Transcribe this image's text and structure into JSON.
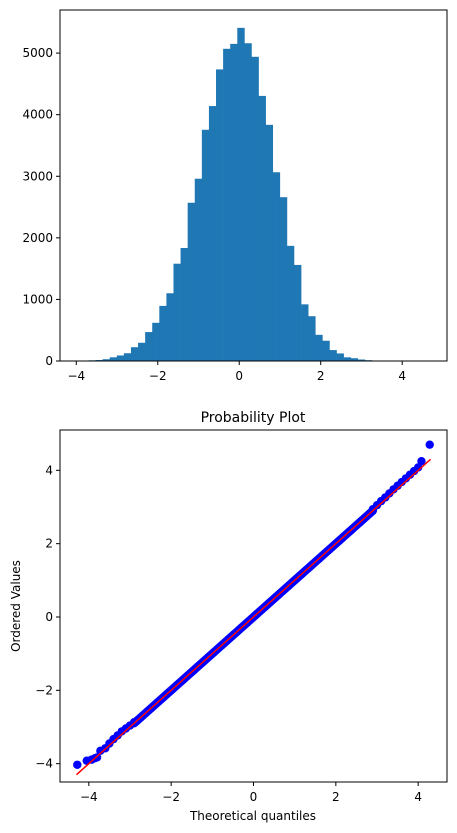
{
  "chart_data": [
    {
      "type": "bar",
      "subtype": "histogram",
      "title": "",
      "xlabel": "",
      "ylabel": "",
      "xlim": [
        -4.4,
        5.1
      ],
      "ylim": [
        0,
        5700
      ],
      "xticks": [
        -4,
        -2,
        0,
        2,
        4
      ],
      "xtick_labels": [
        "−4",
        "−2",
        "0",
        "2",
        "4"
      ],
      "yticks": [
        0,
        1000,
        2000,
        3000,
        4000,
        5000
      ],
      "ytick_labels": [
        "0",
        "1000",
        "2000",
        "3000",
        "4000",
        "5000"
      ],
      "grid": false,
      "color": "#1f77b4",
      "bin_start": -4.05,
      "bin_width": 0.174,
      "values": [
        3,
        4,
        11,
        16,
        29,
        60,
        90,
        126,
        224,
        296,
        470,
        620,
        895,
        1100,
        1580,
        1835,
        2570,
        2960,
        3755,
        4140,
        4735,
        5070,
        5150,
        5410,
        5160,
        4940,
        4305,
        3835,
        3065,
        2660,
        1870,
        1560,
        920,
        727,
        425,
        329,
        177,
        123,
        60,
        45,
        24,
        13,
        7,
        4,
        2,
        1,
        1,
        0,
        0,
        0,
        0,
        1
      ]
    },
    {
      "type": "scatter",
      "title": "Probability Plot",
      "xlabel": "Theoretical quantiles",
      "ylabel": "Ordered Values",
      "xlim": [
        -4.7,
        4.7
      ],
      "ylim": [
        -4.5,
        5.1
      ],
      "xticks": [
        -4,
        -2,
        0,
        2,
        4
      ],
      "xtick_labels": [
        "−4",
        "−2",
        "0",
        "2",
        "4"
      ],
      "yticks": [
        -4,
        -2,
        0,
        2,
        4
      ],
      "ytick_labels": [
        "−4",
        "−2",
        "0",
        "2",
        "4"
      ],
      "grid": false,
      "point_color": "#0000ff",
      "line_color": "#ff0000",
      "fit_line": {
        "slope": 1.0,
        "intercept": 0.0,
        "x_range": [
          -4.3,
          4.3
        ]
      },
      "points": [
        [
          -4.28,
          -4.03
        ],
        [
          -4.05,
          -3.92
        ],
        [
          -3.93,
          -3.89
        ],
        [
          -3.85,
          -3.85
        ],
        [
          -3.8,
          -3.83
        ],
        [
          -3.72,
          -3.65
        ],
        [
          -3.6,
          -3.58
        ],
        [
          -3.5,
          -3.45
        ],
        [
          -3.4,
          -3.33
        ],
        [
          -3.3,
          -3.23
        ],
        [
          -3.2,
          -3.12
        ],
        [
          -3.1,
          -3.04
        ],
        [
          -3.0,
          -2.96
        ],
        [
          -2.9,
          -2.87
        ],
        [
          2.9,
          2.94
        ],
        [
          3.0,
          3.05
        ],
        [
          3.1,
          3.16
        ],
        [
          3.2,
          3.26
        ],
        [
          3.3,
          3.37
        ],
        [
          3.4,
          3.48
        ],
        [
          3.5,
          3.58
        ],
        [
          3.6,
          3.68
        ],
        [
          3.7,
          3.78
        ],
        [
          3.8,
          3.88
        ],
        [
          3.9,
          3.98
        ],
        [
          4.0,
          4.08
        ],
        [
          4.08,
          4.25
        ],
        [
          4.28,
          4.7
        ]
      ]
    }
  ]
}
